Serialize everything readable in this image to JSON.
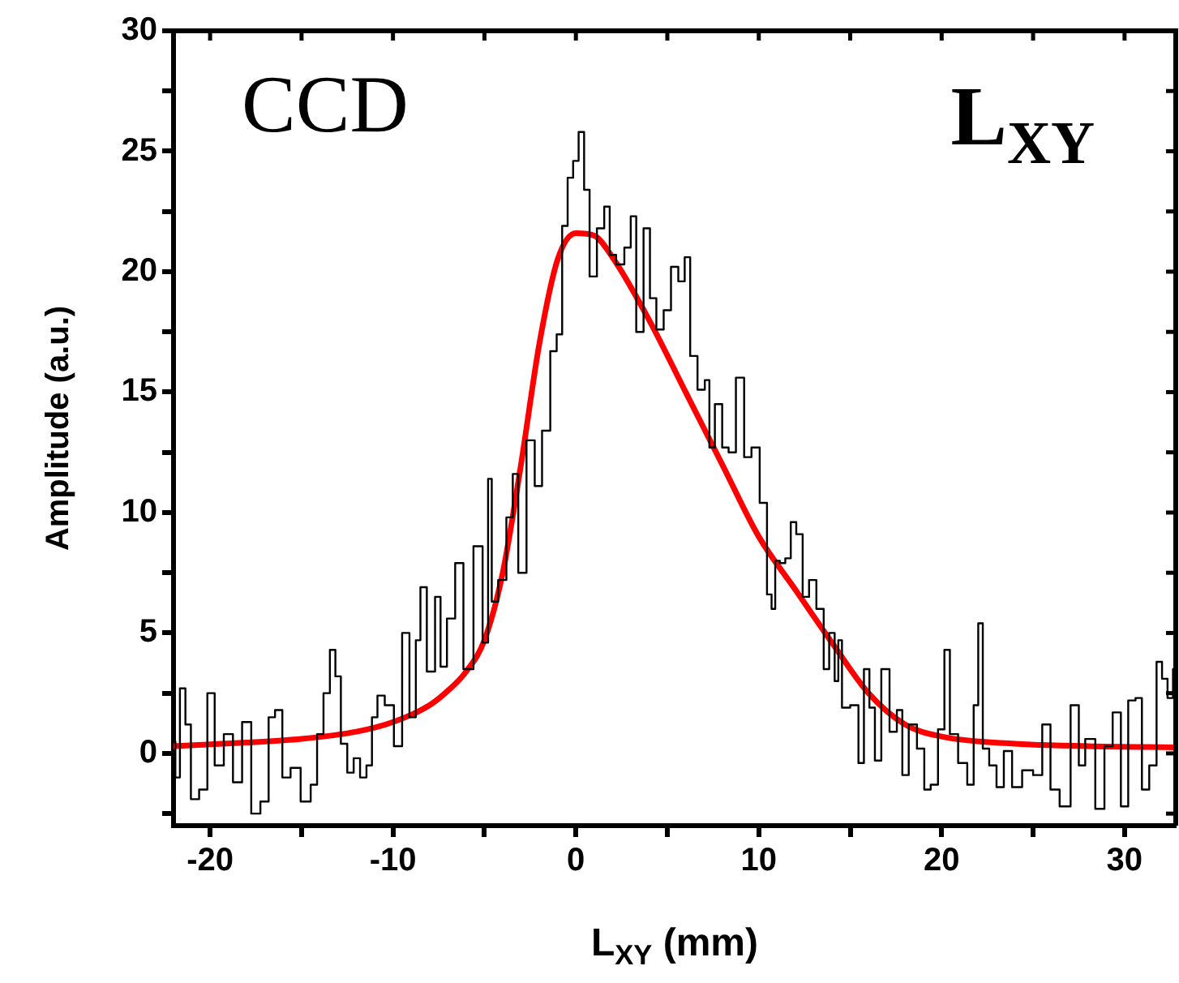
{
  "chart_data": {
    "type": "step",
    "xlabel": "L$_{XY}$ (mm)",
    "ylabel": "Amplitude (a.u.)",
    "annotations": [
      "CCD",
      "L$_{XY}$"
    ],
    "xlim": [
      -22,
      32.8
    ],
    "ylim": [
      -3,
      30
    ],
    "xticks": [
      -20,
      {
        "value": -15,
        "label": null
      },
      -10,
      {
        "value": -5,
        "label": null
      },
      0,
      {
        "value": 5,
        "label": null
      },
      10,
      {
        "value": 15,
        "label": null
      },
      20,
      {
        "value": 25,
        "label": null
      },
      30
    ],
    "yticks": [
      {
        "value": -2.5,
        "label": null
      },
      0,
      {
        "value": 2.5,
        "label": null
      },
      5,
      {
        "value": 7.5,
        "label": null
      },
      10,
      {
        "value": 12.5,
        "label": null
      },
      15,
      {
        "value": 17.5,
        "label": null
      },
      20,
      {
        "value": 22.5,
        "label": null
      },
      25,
      {
        "value": 27.5,
        "label": null
      },
      30
    ],
    "grid": false,
    "legend": false,
    "marker": "none",
    "series": [
      {
        "type": "step",
        "color": "#000000",
        "x": [
          -22,
          -21.8,
          -21.5,
          -21.2,
          -20.9,
          -20.6,
          -20.3,
          -20,
          -19.5,
          -19,
          -18.5,
          -18,
          -17.5,
          -17,
          -16.6,
          -16.3,
          -15.8,
          -15.4,
          -15,
          -14.7,
          -14.3,
          -14,
          -13.6,
          -13.3,
          -13,
          -12.7,
          -12.3,
          -12,
          -11.6,
          -11.3,
          -11,
          -10.7,
          -10.2,
          -9.7,
          -9.3,
          -8.9,
          -8.6,
          -8.4,
          -7.9,
          -7.5,
          -7.3,
          -6.8,
          -6.4,
          -5.9,
          -5.3,
          -4.9,
          -4.7,
          -4.5,
          -4.0,
          -3.6,
          -3.3,
          -3.0,
          -2.4,
          -2.1,
          -1.6,
          -1.2,
          -0.9,
          -0.6,
          -0.3,
          0.0,
          0.3,
          0.6,
          0.9,
          1.4,
          1.7,
          2.0,
          2.4,
          2.9,
          3.1,
          3.5,
          3.9,
          4.2,
          4.6,
          5.0,
          5.4,
          5.8,
          6.1,
          6.4,
          6.9,
          7.2,
          7.4,
          7.8,
          8.2,
          8.5,
          9.0,
          9.4,
          9.8,
          10.3,
          10.6,
          10.8,
          11.0,
          11.3,
          11.6,
          11.9,
          12.2,
          12.6,
          12.9,
          13.4,
          13.7,
          14.0,
          14.3,
          14.4,
          14.7,
          15.3,
          15.6,
          15.9,
          16.2,
          16.5,
          16.9,
          17.4,
          17.7,
          18.0,
          18.4,
          18.9,
          19.2,
          19.6,
          20.0,
          20.3,
          20.6,
          20.8,
          21.2,
          21.6,
          21.9,
          22.1,
          22.4,
          22.8,
          23.2,
          23.6,
          24.1,
          24.7,
          25.3,
          25.7,
          26.2,
          26.7,
          27.4,
          27.6,
          28.1,
          28.7,
          29.1,
          29.6,
          30.0,
          30.4,
          30.8,
          31.1,
          31.6,
          31.9,
          32.2,
          32.5,
          32.8
        ],
        "values": [
          0.5,
          -1.0,
          2.7,
          1.2,
          -1.9,
          null,
          -1.5,
          2.5,
          -0.5,
          0.8,
          -1.2,
          1.3,
          -2.5,
          -2.0,
          1.5,
          1.8,
          -1.0,
          -0.6,
          null,
          -2.0,
          -1.3,
          0.8,
          2.5,
          4.3,
          3.2,
          0.4,
          -0.8,
          -0.2,
          -1.0,
          -0.5,
          1.5,
          2.4,
          2.0,
          0.3,
          5.0,
          1.5,
          4.7,
          6.9,
          3.4,
          6.5,
          3.6,
          5.6,
          7.9,
          3.5,
          8.6,
          4.6,
          11.4,
          6.3,
          7.2,
          9.8,
          11.6,
          7.5,
          13.0,
          11.1,
          13.4,
          16.7,
          17.4,
          21.9,
          23.9,
          24.6,
          25.8,
          23.4,
          19.8,
          21.8,
          22.7,
          20.7,
          20.3,
          21.0,
          22.3,
          17.5,
          21.8,
          18.9,
          17.6,
          18.4,
          20.2,
          19.6,
          20.6,
          16.5,
          15.1,
          15.5,
          12.7,
          14.5,
          12.7,
          12.5,
          15.6,
          12.3,
          12.7,
          10.4,
          6.6,
          6.0,
          8.0,
          7.9,
          8.1,
          9.6,
          9.1,
          6.5,
          7.2,
          6.0,
          3.5,
          5.0,
          3.0,
          4.7,
          1.9,
          2.0,
          -0.4,
          3.5,
          1.9,
          -0.3,
          3.5,
          0.9,
          1.8,
          -0.9,
          1.2,
          0.2,
          -1.5,
          -1.3,
          1.0,
          4.3,
          0.8,
          null,
          -0.4,
          -1.3,
          2.0,
          5.4,
          0.2,
          -0.5,
          -1.4,
          0.1,
          -1.4,
          -0.7,
          -0.9,
          1.2,
          -1.5,
          -2.2,
          2.0,
          -0.5,
          0.6,
          -2.3,
          0.3,
          1.7,
          -2.2,
          2.2,
          2.3,
          -1.5,
          -0.5,
          3.8,
          3.1,
          2.3,
          3.5
        ]
      },
      {
        "type": "line",
        "color": "#ff0000",
        "x": [
          -22,
          -18,
          -15,
          -12,
          -10,
          -8,
          -7,
          -6,
          -5,
          -4,
          -3,
          -2,
          -1,
          0,
          1,
          2,
          4,
          6,
          8,
          10,
          12,
          14,
          16,
          18,
          20,
          24,
          28,
          32.8
        ],
        "values": [
          0.3,
          0.45,
          0.6,
          0.9,
          1.3,
          2.0,
          2.6,
          3.4,
          4.7,
          7.5,
          12.0,
          17.0,
          20.5,
          21.6,
          21.5,
          20.6,
          18.0,
          15.0,
          12.0,
          9.0,
          6.8,
          4.6,
          2.5,
          1.2,
          0.7,
          0.4,
          0.3,
          0.25
        ]
      }
    ]
  }
}
